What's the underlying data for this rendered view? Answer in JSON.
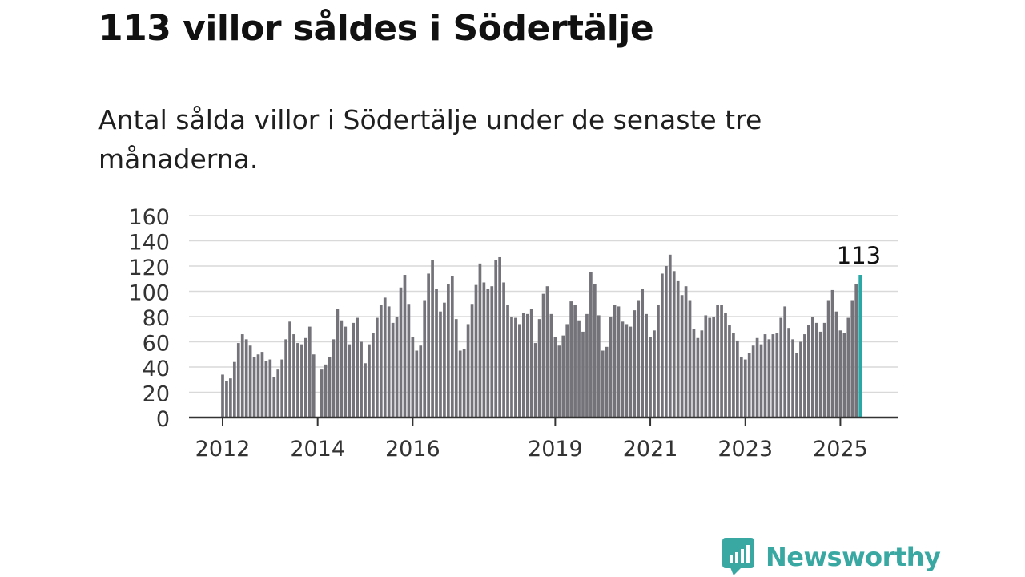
{
  "header": {
    "title": "113 villor såldes i Södertälje",
    "subtitle": "Antal sålda villor i Södertälje under de senaste tre månaderna."
  },
  "logo": {
    "text": "Newsworthy",
    "icon": "bar-chart-speech-bubble-icon",
    "color": "#3aa8a2"
  },
  "chart_data": {
    "type": "bar",
    "x_tick_labels": [
      "2012",
      "2014",
      "2016",
      "2019",
      "2021",
      "2023",
      "2025"
    ],
    "y_tick_labels": [
      "0",
      "20",
      "40",
      "60",
      "80",
      "100",
      "120",
      "140",
      "160"
    ],
    "ylim": [
      0,
      160
    ],
    "grid": true,
    "bar_color": "#747379",
    "highlight_color": "#29a8a5",
    "highlight_label": "113",
    "first_period": "2012-01",
    "values": [
      34,
      29,
      31,
      44,
      59,
      66,
      62,
      57,
      48,
      50,
      52,
      45,
      46,
      32,
      38,
      46,
      62,
      76,
      66,
      59,
      58,
      63,
      72,
      50,
      null,
      38,
      42,
      48,
      62,
      86,
      77,
      72,
      58,
      75,
      79,
      60,
      43,
      58,
      67,
      79,
      89,
      95,
      88,
      75,
      80,
      103,
      113,
      90,
      64,
      53,
      57,
      93,
      114,
      125,
      102,
      84,
      91,
      106,
      112,
      78,
      53,
      54,
      74,
      90,
      105,
      122,
      107,
      102,
      104,
      125,
      127,
      107,
      89,
      80,
      79,
      74,
      83,
      82,
      86,
      59,
      78,
      98,
      104,
      82,
      64,
      57,
      65,
      74,
      92,
      89,
      77,
      68,
      82,
      115,
      106,
      81,
      53,
      56,
      80,
      89,
      88,
      76,
      74,
      72,
      85,
      93,
      102,
      82,
      64,
      69,
      89,
      114,
      120,
      129,
      116,
      108,
      97,
      104,
      93,
      70,
      63,
      69,
      81,
      79,
      80,
      89,
      89,
      83,
      73,
      67,
      61,
      48,
      46,
      51,
      57,
      63,
      58,
      66,
      62,
      66,
      67,
      79,
      88,
      71,
      62,
      51,
      60,
      66,
      73,
      80,
      75,
      68,
      75,
      93,
      101,
      84,
      69,
      67,
      79,
      93,
      106,
      113
    ]
  }
}
